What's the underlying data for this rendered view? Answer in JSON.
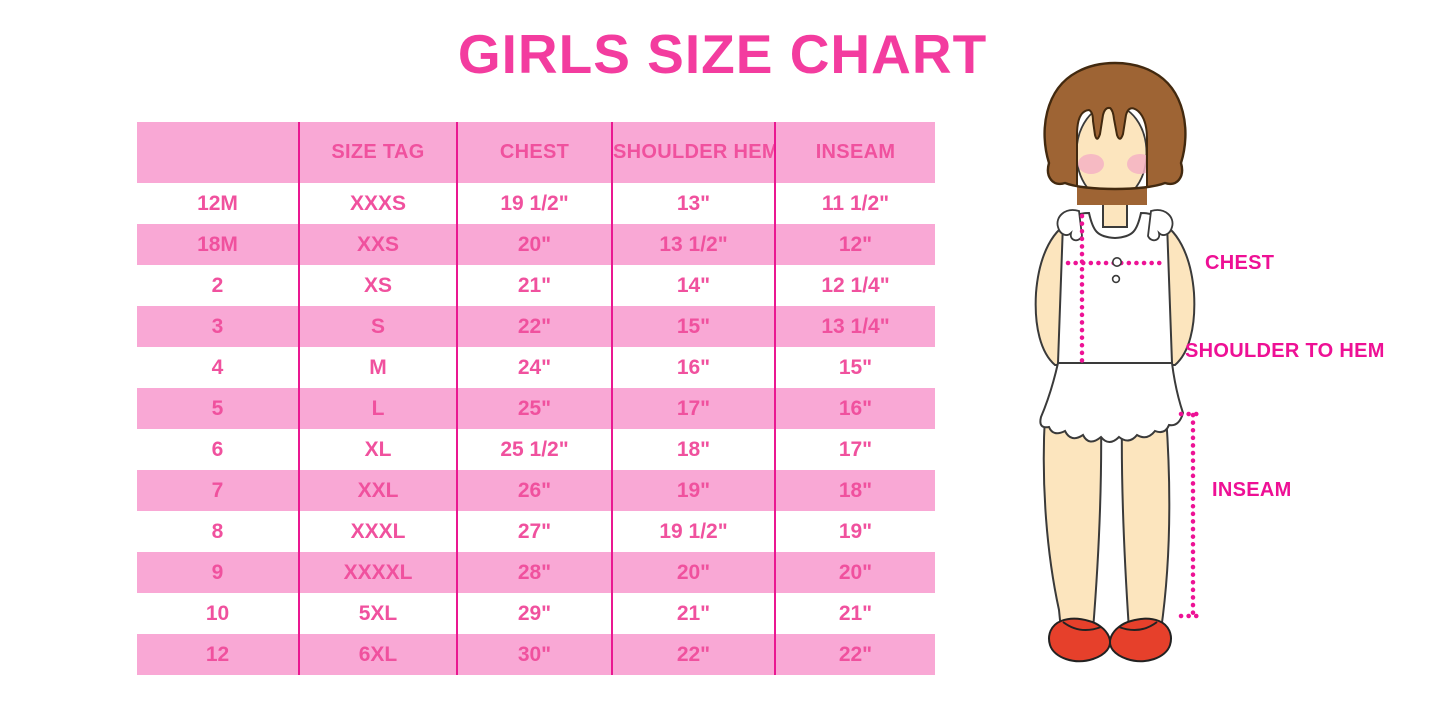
{
  "title": "GIRLS SIZE CHART",
  "chart_data": {
    "type": "table",
    "title": "GIRLS SIZE CHART",
    "columns": [
      "",
      "SIZE TAG",
      "CHEST",
      "SHOULDER HEM",
      "INSEAM"
    ],
    "rows": [
      [
        "12M",
        "XXXS",
        "19 1/2\"",
        "13\"",
        "11 1/2\""
      ],
      [
        "18M",
        "XXS",
        "20\"",
        "13 1/2\"",
        "12\""
      ],
      [
        "2",
        "XS",
        "21\"",
        "14\"",
        "12 1/4\""
      ],
      [
        "3",
        "S",
        "22\"",
        "15\"",
        "13 1/4\""
      ],
      [
        "4",
        "M",
        "24\"",
        "16\"",
        "15\""
      ],
      [
        "5",
        "L",
        "25\"",
        "17\"",
        "16\""
      ],
      [
        "6",
        "XL",
        "25 1/2\"",
        "18\"",
        "17\""
      ],
      [
        "7",
        "XXL",
        "26\"",
        "19\"",
        "18\""
      ],
      [
        "8",
        "XXXL",
        "27\"",
        "19 1/2\"",
        "19\""
      ],
      [
        "9",
        "XXXXL",
        "28\"",
        "20\"",
        "20\""
      ],
      [
        "10",
        "5XL",
        "29\"",
        "21\"",
        "21\""
      ],
      [
        "12",
        "6XL",
        "30\"",
        "22\"",
        "22\""
      ]
    ],
    "layout": {
      "striped_rows": true,
      "stripe_start": "white",
      "grid": "vertical-only"
    }
  },
  "figure": {
    "labels": {
      "chest": "CHEST",
      "shoulder_to_hem": "SHOULDER TO HEM",
      "inseam": "INSEAM"
    }
  },
  "colors": {
    "title_pink": "#F33C9F",
    "table_text_pink": "#F0519E",
    "row_pink": "#F9A8D5",
    "divider_pink": "#EA1891",
    "label_pink": "#EE1095",
    "dotted_line_pink": "#ED1295",
    "hair_brown": "#9E6434",
    "skin": "#FCE5BE",
    "blush": "#F5B3C4",
    "shoe_red": "#E6402B"
  }
}
